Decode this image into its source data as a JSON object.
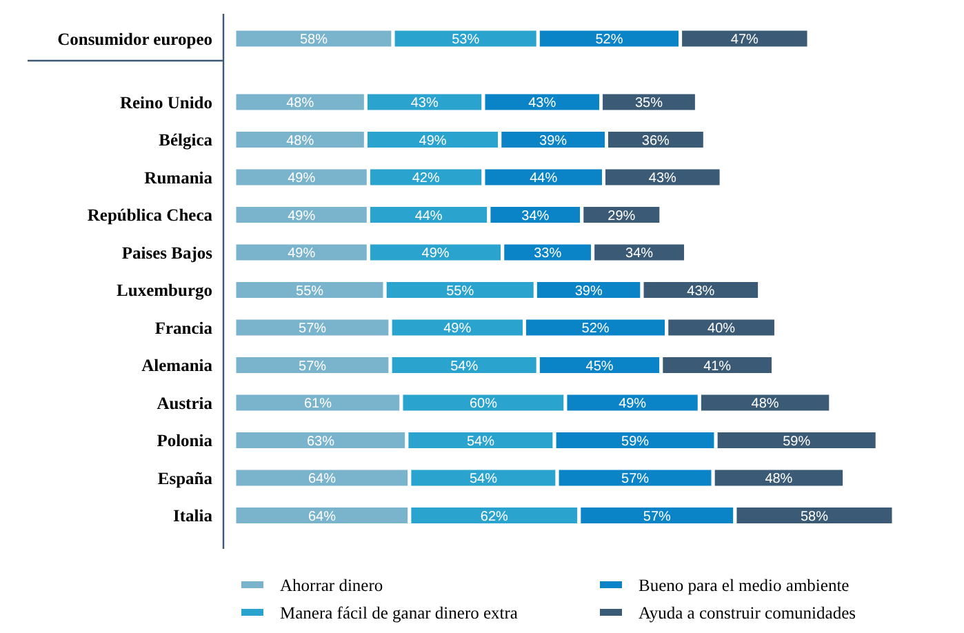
{
  "chart_data": {
    "type": "bar",
    "orientation": "horizontal",
    "stacked": true,
    "legend": "bottom",
    "categories": [
      "Consumidor europeo",
      "Reino Unido",
      "Bélgica",
      "Rumania",
      "República Checa",
      "Paises Bajos",
      "Luxemburgo",
      "Francia",
      "Alemania",
      "Austria",
      "Polonia",
      "España",
      "Italia"
    ],
    "series": [
      {
        "name": "Ahorrar dinero",
        "color": "#7ab3cc",
        "values": [
          58,
          48,
          48,
          49,
          49,
          49,
          55,
          57,
          57,
          61,
          63,
          64,
          64
        ],
        "value_labels": [
          "58%",
          "48%",
          "48%",
          "49%",
          "49%",
          "49%",
          "55%",
          "57%",
          "57%",
          "61%",
          "63%",
          "64%",
          "64%"
        ]
      },
      {
        "name": "Manera fácil de ganar dinero extra",
        "color": "#2ba3cf",
        "values": [
          53,
          43,
          49,
          42,
          44,
          49,
          55,
          49,
          54,
          60,
          54,
          54,
          62
        ],
        "value_labels": [
          "53%",
          "43%",
          "49%",
          "42%",
          "44%",
          "49%",
          "55%",
          "49%",
          "54%",
          "60%",
          "54%",
          "54%",
          "62%"
        ]
      },
      {
        "name": "Bueno para el medio ambiente",
        "color": "#0a84c6",
        "values": [
          52,
          43,
          39,
          44,
          34,
          33,
          39,
          52,
          45,
          49,
          59,
          57,
          57
        ],
        "value_labels": [
          "52%",
          "43%",
          "39%",
          "44%",
          "34%",
          "33%",
          "39%",
          "52%",
          "45%",
          "49%",
          "59%",
          "57%",
          "57%"
        ]
      },
      {
        "name": "Ayuda a construir comunidades",
        "color": "#3a5a75",
        "values": [
          47,
          35,
          36,
          43,
          29,
          34,
          43,
          40,
          41,
          48,
          59,
          48,
          58
        ],
        "value_labels": [
          "47%",
          "35%",
          "36%",
          "43%",
          "29%",
          "34%",
          "43%",
          "40%",
          "41%",
          "48%",
          "59%",
          "48%",
          "58%"
        ]
      }
    ]
  }
}
